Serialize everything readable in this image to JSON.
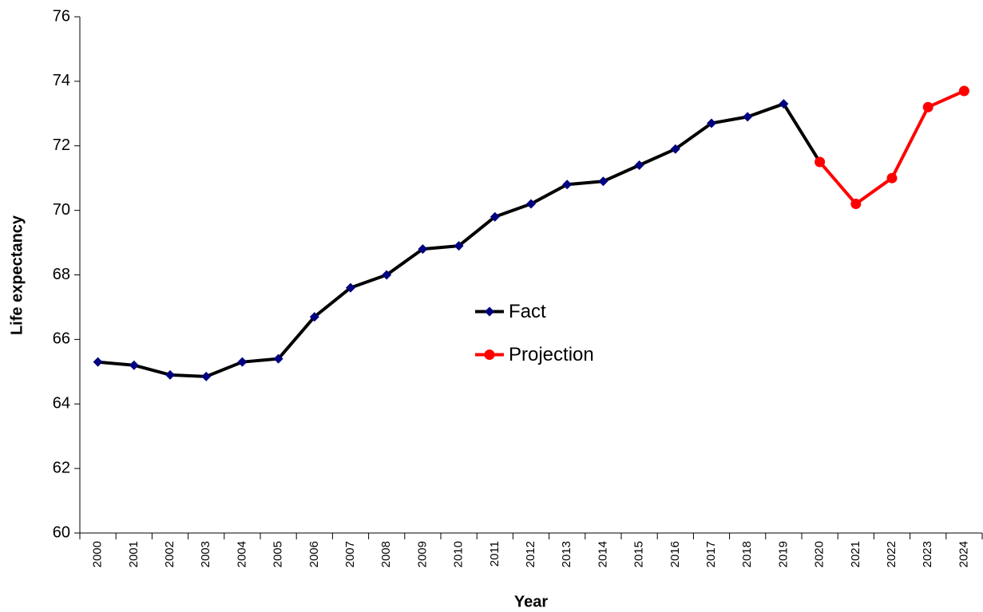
{
  "chart_data": {
    "type": "line",
    "x_label": "Year",
    "y_label": "Life expectancy",
    "categories": [
      "2000",
      "2001",
      "2002",
      "2003",
      "2004",
      "2005",
      "2006",
      "2007",
      "2008",
      "2009",
      "2010",
      "2011",
      "2012",
      "2013",
      "2014",
      "2015",
      "2016",
      "2017",
      "2018",
      "2019",
      "2020",
      "2021",
      "2022",
      "2023",
      "2024"
    ],
    "series": [
      {
        "name": "Fact",
        "color": "#000000",
        "marker_color": "#000080",
        "marker": "diamond",
        "values": [
          65.3,
          65.2,
          64.9,
          64.85,
          65.3,
          65.4,
          66.7,
          67.6,
          68.0,
          68.8,
          68.9,
          69.8,
          70.2,
          70.8,
          70.9,
          71.4,
          71.9,
          72.7,
          72.9,
          73.3,
          71.5,
          null,
          null,
          null,
          null
        ]
      },
      {
        "name": "Projection",
        "color": "#ff0000",
        "marker_color": "#ff0000",
        "marker": "circle",
        "values": [
          null,
          null,
          null,
          null,
          null,
          null,
          null,
          null,
          null,
          null,
          null,
          null,
          null,
          null,
          null,
          null,
          null,
          null,
          null,
          null,
          71.5,
          70.2,
          71.0,
          73.2,
          73.7
        ]
      }
    ],
    "ylim": [
      60,
      76
    ],
    "yticks": [
      60,
      62,
      64,
      66,
      68,
      70,
      72,
      74,
      76
    ],
    "grid": false,
    "legend": "center"
  }
}
